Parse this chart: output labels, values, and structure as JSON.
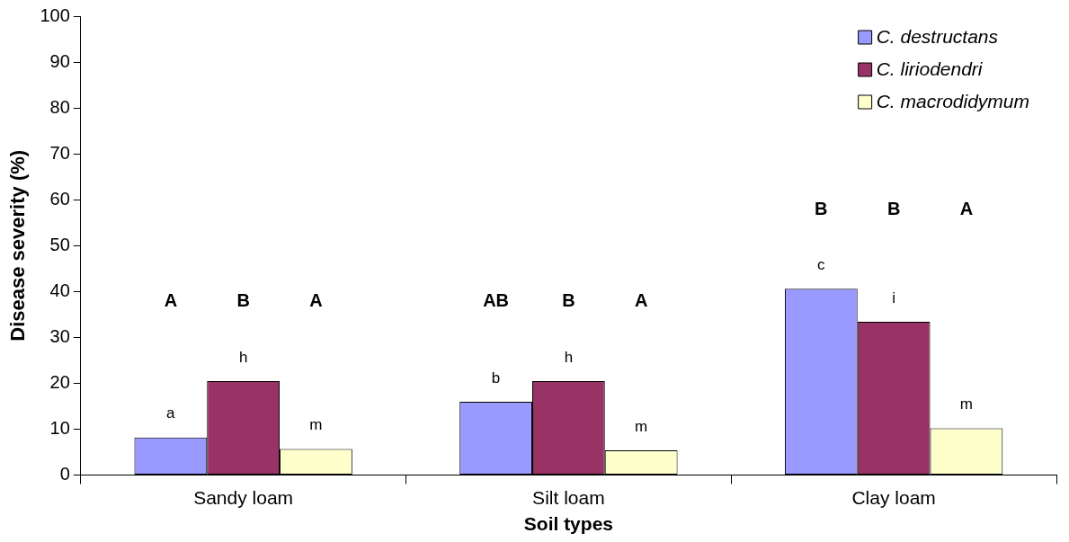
{
  "chart_data": {
    "type": "bar",
    "xlabel": "Soil types",
    "ylabel": "Disease severity (%)",
    "categories": [
      "Sandy loam",
      "Silt loam",
      "Clay loam"
    ],
    "series": [
      {
        "name": "C. destructans",
        "color": "#9999ff",
        "values": [
          8.2,
          16.0,
          40.6
        ]
      },
      {
        "name": "C. liriodendri",
        "color": "#993366",
        "values": [
          20.5,
          20.5,
          33.4
        ]
      },
      {
        "name": "C. macrodidymum",
        "color": "#ffffcc",
        "values": [
          5.7,
          5.4,
          10.2
        ]
      }
    ],
    "ylim": [
      0,
      100
    ],
    "yticks": [
      0,
      10,
      20,
      30,
      40,
      50,
      60,
      70,
      80,
      90,
      100
    ],
    "grid": false,
    "legend": "top right",
    "annotations": [
      "A",
      "B",
      "A",
      "a",
      "h",
      "m",
      "AB",
      "B",
      "A",
      "b",
      "h",
      "m",
      "B",
      "B",
      "A",
      "c",
      "i",
      "m"
    ]
  }
}
